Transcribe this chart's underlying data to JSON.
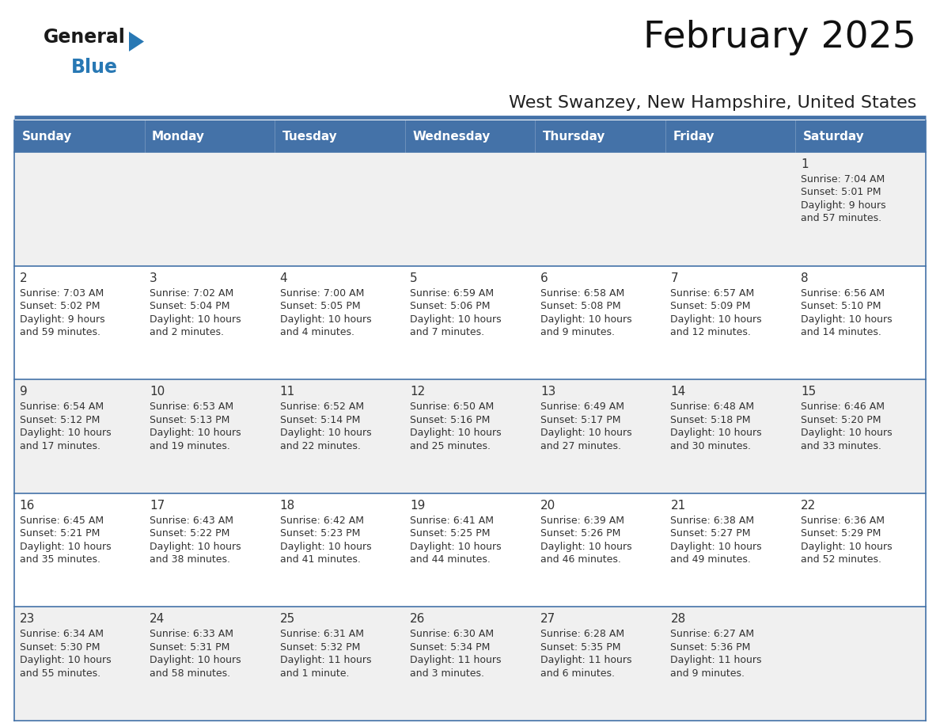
{
  "title": "February 2025",
  "subtitle": "West Swanzey, New Hampshire, United States",
  "header_color": "#4472a8",
  "header_text_color": "#ffffff",
  "days_of_week": [
    "Sunday",
    "Monday",
    "Tuesday",
    "Wednesday",
    "Thursday",
    "Friday",
    "Saturday"
  ],
  "row0_color": "#f0f0f0",
  "row1_color": "#ffffff",
  "row2_color": "#f0f0f0",
  "row3_color": "#ffffff",
  "row4_color": "#f0f0f0",
  "cell_text_color": "#333333",
  "day_num_color": "#333333",
  "border_color": "#4472a8",
  "logo_general_color": "#1a1a1a",
  "logo_blue_color": "#2878b4",
  "calendar_data": [
    {
      "day": 1,
      "week_row": 0,
      "col": 6,
      "sunrise": "7:04 AM",
      "sunset": "5:01 PM",
      "daylight_line1": "Daylight: 9 hours",
      "daylight_line2": "and 57 minutes."
    },
    {
      "day": 2,
      "week_row": 1,
      "col": 0,
      "sunrise": "7:03 AM",
      "sunset": "5:02 PM",
      "daylight_line1": "Daylight: 9 hours",
      "daylight_line2": "and 59 minutes."
    },
    {
      "day": 3,
      "week_row": 1,
      "col": 1,
      "sunrise": "7:02 AM",
      "sunset": "5:04 PM",
      "daylight_line1": "Daylight: 10 hours",
      "daylight_line2": "and 2 minutes."
    },
    {
      "day": 4,
      "week_row": 1,
      "col": 2,
      "sunrise": "7:00 AM",
      "sunset": "5:05 PM",
      "daylight_line1": "Daylight: 10 hours",
      "daylight_line2": "and 4 minutes."
    },
    {
      "day": 5,
      "week_row": 1,
      "col": 3,
      "sunrise": "6:59 AM",
      "sunset": "5:06 PM",
      "daylight_line1": "Daylight: 10 hours",
      "daylight_line2": "and 7 minutes."
    },
    {
      "day": 6,
      "week_row": 1,
      "col": 4,
      "sunrise": "6:58 AM",
      "sunset": "5:08 PM",
      "daylight_line1": "Daylight: 10 hours",
      "daylight_line2": "and 9 minutes."
    },
    {
      "day": 7,
      "week_row": 1,
      "col": 5,
      "sunrise": "6:57 AM",
      "sunset": "5:09 PM",
      "daylight_line1": "Daylight: 10 hours",
      "daylight_line2": "and 12 minutes."
    },
    {
      "day": 8,
      "week_row": 1,
      "col": 6,
      "sunrise": "6:56 AM",
      "sunset": "5:10 PM",
      "daylight_line1": "Daylight: 10 hours",
      "daylight_line2": "and 14 minutes."
    },
    {
      "day": 9,
      "week_row": 2,
      "col": 0,
      "sunrise": "6:54 AM",
      "sunset": "5:12 PM",
      "daylight_line1": "Daylight: 10 hours",
      "daylight_line2": "and 17 minutes."
    },
    {
      "day": 10,
      "week_row": 2,
      "col": 1,
      "sunrise": "6:53 AM",
      "sunset": "5:13 PM",
      "daylight_line1": "Daylight: 10 hours",
      "daylight_line2": "and 19 minutes."
    },
    {
      "day": 11,
      "week_row": 2,
      "col": 2,
      "sunrise": "6:52 AM",
      "sunset": "5:14 PM",
      "daylight_line1": "Daylight: 10 hours",
      "daylight_line2": "and 22 minutes."
    },
    {
      "day": 12,
      "week_row": 2,
      "col": 3,
      "sunrise": "6:50 AM",
      "sunset": "5:16 PM",
      "daylight_line1": "Daylight: 10 hours",
      "daylight_line2": "and 25 minutes."
    },
    {
      "day": 13,
      "week_row": 2,
      "col": 4,
      "sunrise": "6:49 AM",
      "sunset": "5:17 PM",
      "daylight_line1": "Daylight: 10 hours",
      "daylight_line2": "and 27 minutes."
    },
    {
      "day": 14,
      "week_row": 2,
      "col": 5,
      "sunrise": "6:48 AM",
      "sunset": "5:18 PM",
      "daylight_line1": "Daylight: 10 hours",
      "daylight_line2": "and 30 minutes."
    },
    {
      "day": 15,
      "week_row": 2,
      "col": 6,
      "sunrise": "6:46 AM",
      "sunset": "5:20 PM",
      "daylight_line1": "Daylight: 10 hours",
      "daylight_line2": "and 33 minutes."
    },
    {
      "day": 16,
      "week_row": 3,
      "col": 0,
      "sunrise": "6:45 AM",
      "sunset": "5:21 PM",
      "daylight_line1": "Daylight: 10 hours",
      "daylight_line2": "and 35 minutes."
    },
    {
      "day": 17,
      "week_row": 3,
      "col": 1,
      "sunrise": "6:43 AM",
      "sunset": "5:22 PM",
      "daylight_line1": "Daylight: 10 hours",
      "daylight_line2": "and 38 minutes."
    },
    {
      "day": 18,
      "week_row": 3,
      "col": 2,
      "sunrise": "6:42 AM",
      "sunset": "5:23 PM",
      "daylight_line1": "Daylight: 10 hours",
      "daylight_line2": "and 41 minutes."
    },
    {
      "day": 19,
      "week_row": 3,
      "col": 3,
      "sunrise": "6:41 AM",
      "sunset": "5:25 PM",
      "daylight_line1": "Daylight: 10 hours",
      "daylight_line2": "and 44 minutes."
    },
    {
      "day": 20,
      "week_row": 3,
      "col": 4,
      "sunrise": "6:39 AM",
      "sunset": "5:26 PM",
      "daylight_line1": "Daylight: 10 hours",
      "daylight_line2": "and 46 minutes."
    },
    {
      "day": 21,
      "week_row": 3,
      "col": 5,
      "sunrise": "6:38 AM",
      "sunset": "5:27 PM",
      "daylight_line1": "Daylight: 10 hours",
      "daylight_line2": "and 49 minutes."
    },
    {
      "day": 22,
      "week_row": 3,
      "col": 6,
      "sunrise": "6:36 AM",
      "sunset": "5:29 PM",
      "daylight_line1": "Daylight: 10 hours",
      "daylight_line2": "and 52 minutes."
    },
    {
      "day": 23,
      "week_row": 4,
      "col": 0,
      "sunrise": "6:34 AM",
      "sunset": "5:30 PM",
      "daylight_line1": "Daylight: 10 hours",
      "daylight_line2": "and 55 minutes."
    },
    {
      "day": 24,
      "week_row": 4,
      "col": 1,
      "sunrise": "6:33 AM",
      "sunset": "5:31 PM",
      "daylight_line1": "Daylight: 10 hours",
      "daylight_line2": "and 58 minutes."
    },
    {
      "day": 25,
      "week_row": 4,
      "col": 2,
      "sunrise": "6:31 AM",
      "sunset": "5:32 PM",
      "daylight_line1": "Daylight: 11 hours",
      "daylight_line2": "and 1 minute."
    },
    {
      "day": 26,
      "week_row": 4,
      "col": 3,
      "sunrise": "6:30 AM",
      "sunset": "5:34 PM",
      "daylight_line1": "Daylight: 11 hours",
      "daylight_line2": "and 3 minutes."
    },
    {
      "day": 27,
      "week_row": 4,
      "col": 4,
      "sunrise": "6:28 AM",
      "sunset": "5:35 PM",
      "daylight_line1": "Daylight: 11 hours",
      "daylight_line2": "and 6 minutes."
    },
    {
      "day": 28,
      "week_row": 4,
      "col": 5,
      "sunrise": "6:27 AM",
      "sunset": "5:36 PM",
      "daylight_line1": "Daylight: 11 hours",
      "daylight_line2": "and 9 minutes."
    }
  ],
  "num_rows": 5,
  "title_fontsize": 34,
  "subtitle_fontsize": 16,
  "header_fontsize": 11,
  "day_num_fontsize": 11,
  "cell_fontsize": 9
}
